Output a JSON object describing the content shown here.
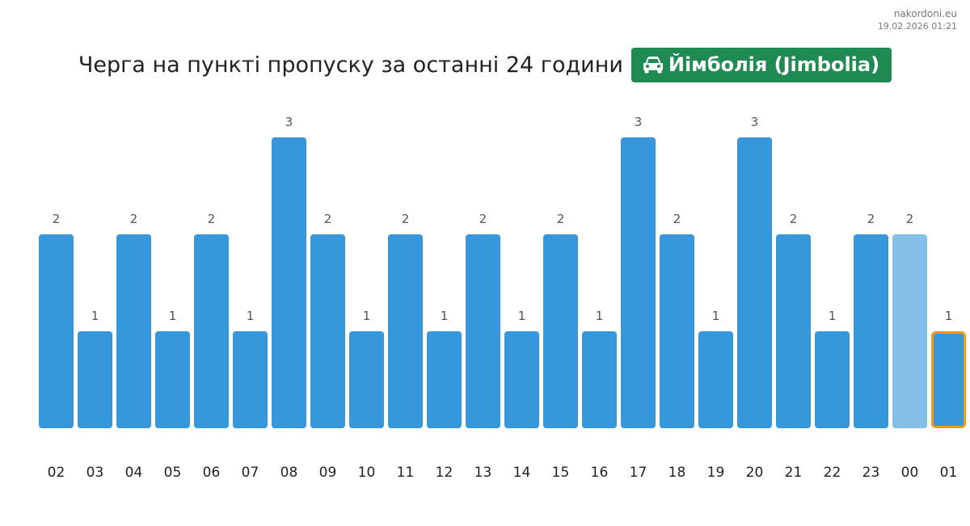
{
  "watermark": {
    "site": "nakordoni.eu",
    "datetime": "19.02.2026 01:21"
  },
  "header": {
    "title": "Черга на пункті пропуску за останні 24 години",
    "badge_icon": "car-icon",
    "badge_label": "Йімболія (Jimbolia)"
  },
  "colors": {
    "bar": "#3797db",
    "bar_previous": "#85bfe7",
    "current_outline": "#f39c12",
    "badge_bg": "#1f8a52"
  },
  "chart_data": {
    "type": "bar",
    "title": "Черга на пункті пропуску за останні 24 години",
    "xlabel": "",
    "ylabel": "",
    "categories": [
      "02",
      "03",
      "04",
      "05",
      "06",
      "07",
      "08",
      "09",
      "10",
      "11",
      "12",
      "13",
      "14",
      "15",
      "16",
      "17",
      "18",
      "19",
      "20",
      "21",
      "22",
      "23",
      "00",
      "01"
    ],
    "values": [
      2,
      1,
      2,
      1,
      2,
      1,
      3,
      2,
      1,
      2,
      1,
      2,
      1,
      2,
      1,
      3,
      2,
      1,
      3,
      2,
      1,
      2,
      2,
      1
    ],
    "ylim": [
      0,
      3
    ],
    "grid": false,
    "data_labels": true,
    "light_bar_category": "00",
    "highlighted_category": "01"
  }
}
